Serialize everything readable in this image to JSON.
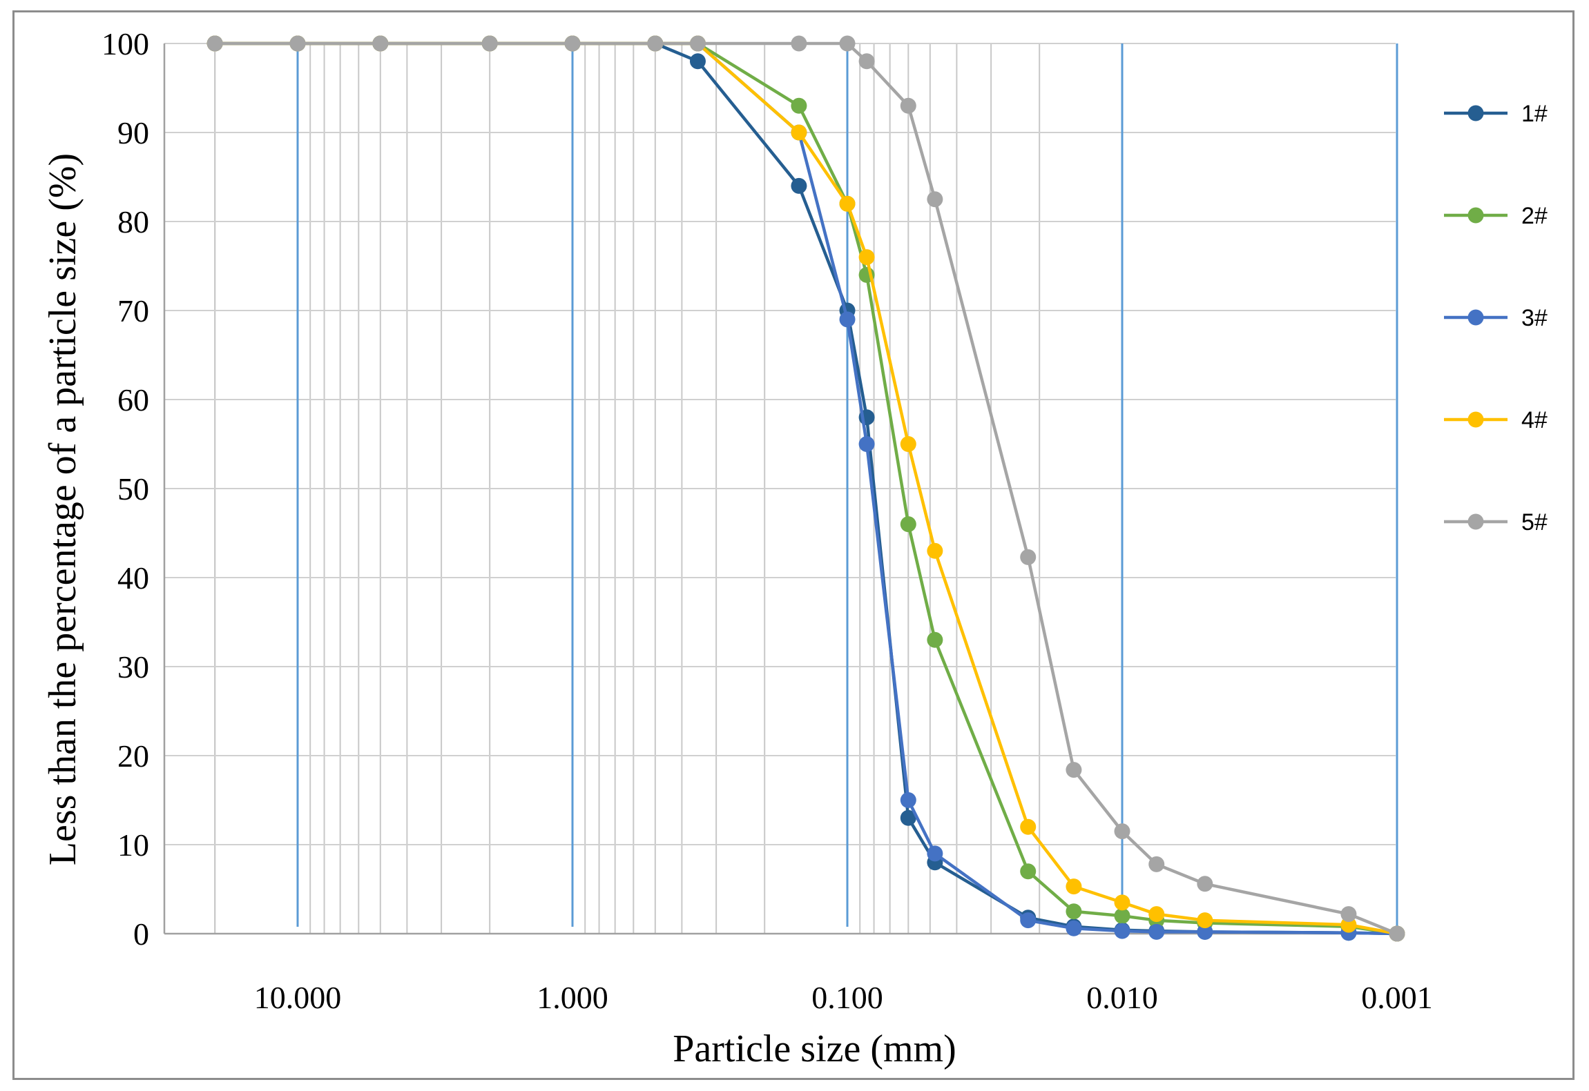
{
  "chart_data": {
    "type": "line",
    "title": "",
    "xlabel": "Particle size (mm)",
    "ylabel": "Less than the percentage of a particle size (%)",
    "x_scale": "log",
    "x_reversed": true,
    "xlim": [
      20,
      0.001
    ],
    "ylim": [
      0,
      100
    ],
    "x_ticks": [
      10,
      1,
      0.1,
      0.01,
      0.001
    ],
    "x_tick_labels": [
      "10.000",
      "1.000",
      "0.100",
      "0.010",
      "0.001"
    ],
    "y_ticks": [
      0,
      10,
      20,
      30,
      40,
      50,
      60,
      70,
      80,
      90,
      100
    ],
    "y_tick_labels": [
      "0",
      "10",
      "20",
      "30",
      "40",
      "50",
      "60",
      "70",
      "80",
      "90",
      "100"
    ],
    "grid": true,
    "legend_position": "right",
    "series": [
      {
        "name": "1#",
        "color": "#255e91",
        "x": [
          20,
          10,
          5,
          2,
          1,
          0.5,
          0.35,
          0.15,
          0.1,
          0.085,
          0.06,
          0.048,
          0.022,
          0.015,
          0.01,
          0.0075,
          0.005,
          0.0015,
          0.001
        ],
        "y": [
          100,
          100,
          100,
          100,
          100,
          100,
          98,
          84,
          70,
          58,
          13,
          8,
          1.8,
          0.8,
          0.4,
          0.3,
          0.2,
          0.1,
          0
        ]
      },
      {
        "name": "2#",
        "color": "#70ad47",
        "x": [
          20,
          10,
          5,
          2,
          1,
          0.5,
          0.35,
          0.15,
          0.1,
          0.085,
          0.06,
          0.048,
          0.022,
          0.015,
          0.01,
          0.0075,
          0.005,
          0.0015,
          0.001
        ],
        "y": [
          100,
          100,
          100,
          100,
          100,
          100,
          100,
          93,
          82,
          74,
          46,
          33,
          7,
          2.5,
          2,
          1.5,
          1.2,
          0.8,
          0
        ]
      },
      {
        "name": "3#",
        "color": "#4472c4",
        "x": [
          20,
          10,
          5,
          2,
          1,
          0.5,
          0.35,
          0.15,
          0.1,
          0.085,
          0.06,
          0.048,
          0.022,
          0.015,
          0.01,
          0.0075,
          0.005,
          0.0015,
          0.001
        ],
        "y": [
          100,
          100,
          100,
          100,
          100,
          100,
          100,
          90,
          69,
          55,
          15,
          9,
          1.5,
          0.6,
          0.3,
          0.2,
          0.2,
          0.1,
          0
        ]
      },
      {
        "name": "4#",
        "color": "#ffc000",
        "x": [
          20,
          10,
          5,
          2,
          1,
          0.5,
          0.35,
          0.15,
          0.1,
          0.085,
          0.06,
          0.048,
          0.022,
          0.015,
          0.01,
          0.0075,
          0.005,
          0.0015,
          0.001
        ],
        "y": [
          100,
          100,
          100,
          100,
          100,
          100,
          100,
          90,
          82,
          76,
          55,
          43,
          12,
          5.3,
          3.5,
          2.2,
          1.5,
          1,
          0
        ]
      },
      {
        "name": "5#",
        "color": "#a5a5a5",
        "x": [
          20,
          10,
          5,
          2,
          1,
          0.5,
          0.35,
          0.15,
          0.1,
          0.085,
          0.06,
          0.048,
          0.022,
          0.015,
          0.01,
          0.0075,
          0.005,
          0.0015,
          0.001
        ],
        "y": [
          100,
          100,
          100,
          100,
          100,
          100,
          100,
          100,
          100,
          98,
          93,
          82.5,
          42.3,
          18.4,
          11.5,
          7.8,
          5.6,
          2.2,
          0
        ]
      }
    ]
  }
}
